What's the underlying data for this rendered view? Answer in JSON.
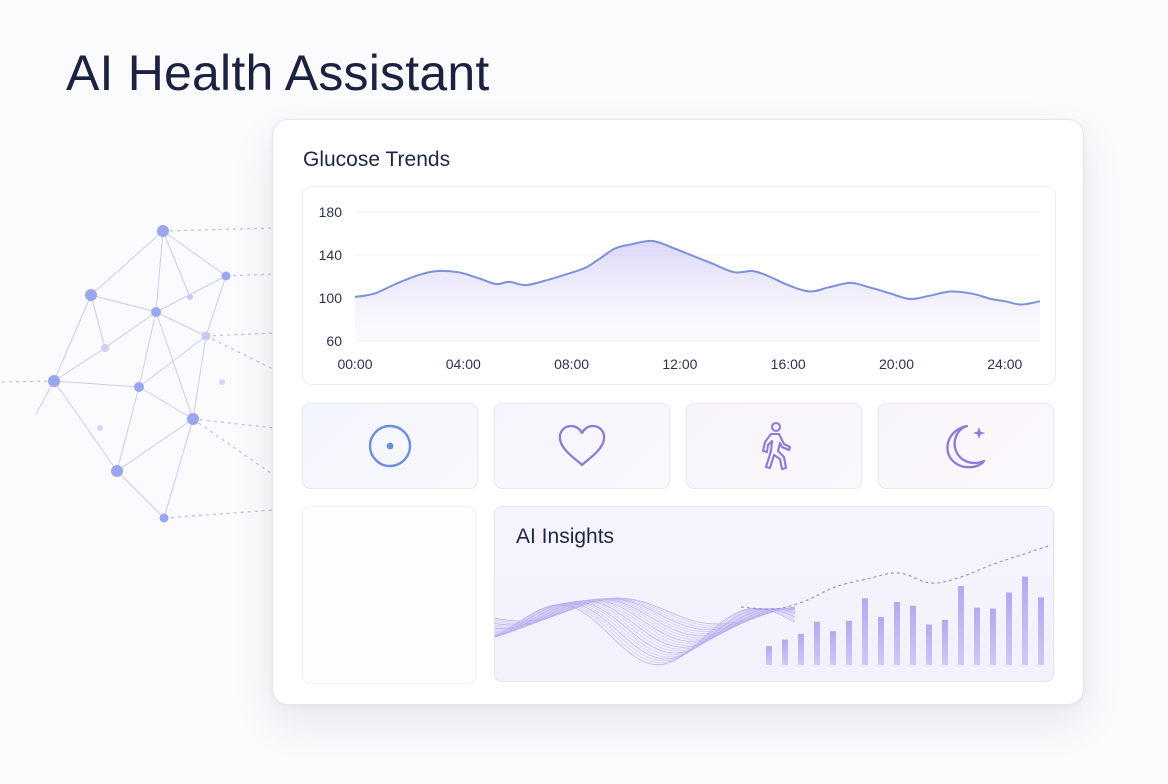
{
  "page": {
    "title": "AI Health Assistant"
  },
  "glucose": {
    "title": "Glucose Trends",
    "chart_data": {
      "type": "area",
      "y_ticks": [
        "180",
        "140",
        "100",
        "60"
      ],
      "x_ticks": [
        "00:00",
        "04:00",
        "08:00",
        "12:00",
        "16:00",
        "20:00",
        "24:00"
      ],
      "ylim": [
        60,
        180
      ],
      "xlim": [
        0,
        25.3
      ],
      "x": [
        0,
        0.7,
        1.5,
        2.3,
        3,
        3.8,
        4.5,
        5.2,
        5.7,
        6.3,
        7,
        7.8,
        8.5,
        9,
        9.6,
        10.2,
        11,
        11.8,
        12.5,
        13.2,
        14,
        14.7,
        15.3,
        16,
        16.8,
        17.5,
        18.3,
        19,
        19.8,
        20.5,
        21.2,
        22,
        22.8,
        23.5,
        24,
        24.6,
        25.3
      ],
      "y": [
        101,
        104,
        113,
        121,
        125,
        124,
        119,
        113,
        115,
        112,
        116,
        122,
        128,
        136,
        146,
        150,
        153,
        146,
        139,
        132,
        124,
        125,
        120,
        112,
        106,
        110,
        114,
        110,
        104,
        99,
        102,
        106,
        104,
        99,
        97,
        94,
        97
      ],
      "grid": true
    }
  },
  "tiles": [
    {
      "icon": "target-icon"
    },
    {
      "icon": "heart-icon"
    },
    {
      "icon": "walking-person-icon"
    },
    {
      "icon": "moon-star-icon"
    }
  ],
  "insights": {
    "title": "AI Insights",
    "chart_data": {
      "type": "bar",
      "values": [
        20,
        27,
        33,
        46,
        36,
        47,
        71,
        51,
        67,
        63,
        43,
        48,
        84,
        61,
        60,
        77,
        94,
        72
      ],
      "ylim": [
        0,
        100
      ]
    }
  },
  "colors": {
    "accent_blue": "#6b8fdc",
    "accent_purple": "#8f79d6",
    "bar": "#b9b4ef",
    "line": "#7b92d8"
  }
}
